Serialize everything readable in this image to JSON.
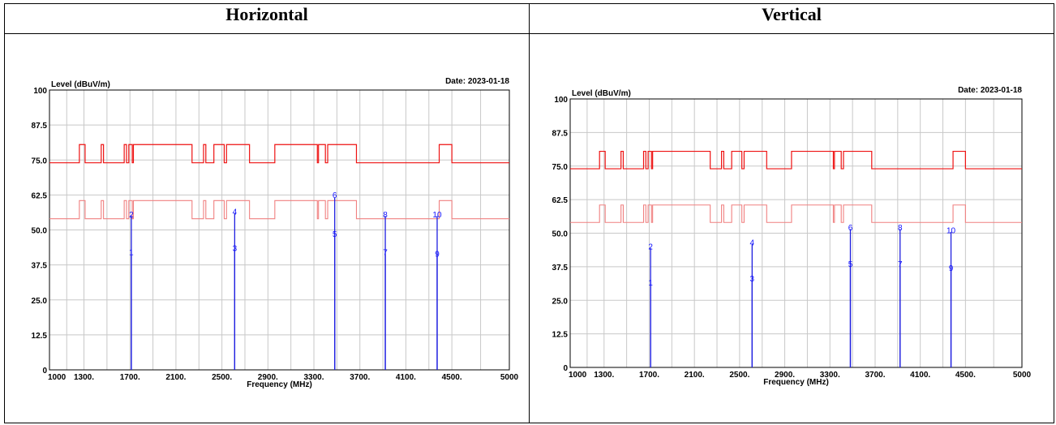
{
  "headers": {
    "left": "Horizontal",
    "right": "Vertical"
  },
  "chart_data": [
    {
      "type": "line",
      "panel": "Horizontal",
      "ylabel": "Level (dBuV/m)",
      "xlabel": "Frequency (MHz)",
      "date_text": "Date: 2023-01-18",
      "xlim": [
        1000,
        5000
      ],
      "ylim": [
        0,
        100
      ],
      "x_ticks": [
        1000,
        1300,
        1700,
        2100,
        2500,
        2900,
        3300,
        3700,
        4100,
        4500,
        5000
      ],
      "x_tick_labels": [
        "1000",
        "1300.",
        "1700.",
        "2100.",
        "2500.",
        "2900.",
        "3300.",
        "3700.",
        "4100.",
        "4500.",
        "5000"
      ],
      "y_ticks": [
        0,
        12.5,
        25,
        37.5,
        50,
        62.5,
        75,
        87.5,
        100
      ],
      "y_tick_labels": [
        "0",
        "12.5",
        "25.0",
        "37.5",
        "50.0",
        "62.5",
        "75.0",
        "87.5",
        "100"
      ],
      "limit_peak": [
        [
          1000,
          74
        ],
        [
          1260,
          74
        ],
        [
          1260,
          80.5
        ],
        [
          1310,
          80.5
        ],
        [
          1310,
          74
        ],
        [
          1450,
          74
        ],
        [
          1450,
          80.5
        ],
        [
          1470,
          80.5
        ],
        [
          1470,
          74
        ],
        [
          1650,
          74
        ],
        [
          1650,
          80.5
        ],
        [
          1670,
          80.5
        ],
        [
          1670,
          74
        ],
        [
          1690,
          74
        ],
        [
          1690,
          80.5
        ],
        [
          1720,
          80.5
        ],
        [
          1720,
          74
        ],
        [
          1730,
          74
        ],
        [
          1730,
          80.5
        ],
        [
          2240,
          80.5
        ],
        [
          2240,
          74
        ],
        [
          2340,
          74
        ],
        [
          2340,
          80.5
        ],
        [
          2360,
          80.5
        ],
        [
          2360,
          74
        ],
        [
          2430,
          74
        ],
        [
          2430,
          80.5
        ],
        [
          2520,
          80.5
        ],
        [
          2520,
          74
        ],
        [
          2540,
          74
        ],
        [
          2540,
          80.5
        ],
        [
          2740,
          80.5
        ],
        [
          2740,
          74
        ],
        [
          2960,
          74
        ],
        [
          2960,
          80.5
        ],
        [
          3330,
          80.5
        ],
        [
          3330,
          74
        ],
        [
          3340,
          74
        ],
        [
          3340,
          80.5
        ],
        [
          3400,
          80.5
        ],
        [
          3400,
          74
        ],
        [
          3420,
          74
        ],
        [
          3420,
          80.5
        ],
        [
          3670,
          80.5
        ],
        [
          3670,
          74
        ],
        [
          4390,
          74
        ],
        [
          4390,
          80.5
        ],
        [
          4500,
          80.5
        ],
        [
          4500,
          74
        ],
        [
          5000,
          74
        ]
      ],
      "limit_avg": [
        [
          1000,
          54
        ],
        [
          1260,
          54
        ],
        [
          1260,
          60.5
        ],
        [
          1310,
          60.5
        ],
        [
          1310,
          54
        ],
        [
          1450,
          54
        ],
        [
          1450,
          60.5
        ],
        [
          1470,
          60.5
        ],
        [
          1470,
          54
        ],
        [
          1650,
          54
        ],
        [
          1650,
          60.5
        ],
        [
          1670,
          60.5
        ],
        [
          1670,
          54
        ],
        [
          1690,
          54
        ],
        [
          1690,
          60.5
        ],
        [
          1720,
          60.5
        ],
        [
          1720,
          54
        ],
        [
          1730,
          54
        ],
        [
          1730,
          60.5
        ],
        [
          2240,
          60.5
        ],
        [
          2240,
          54
        ],
        [
          2340,
          54
        ],
        [
          2340,
          60.5
        ],
        [
          2360,
          60.5
        ],
        [
          2360,
          54
        ],
        [
          2430,
          54
        ],
        [
          2430,
          60.5
        ],
        [
          2520,
          60.5
        ],
        [
          2520,
          54
        ],
        [
          2540,
          54
        ],
        [
          2540,
          60.5
        ],
        [
          2740,
          60.5
        ],
        [
          2740,
          54
        ],
        [
          2960,
          54
        ],
        [
          2960,
          60.5
        ],
        [
          3330,
          60.5
        ],
        [
          3330,
          54
        ],
        [
          3340,
          54
        ],
        [
          3340,
          60.5
        ],
        [
          3400,
          60.5
        ],
        [
          3400,
          54
        ],
        [
          3420,
          54
        ],
        [
          3420,
          60.5
        ],
        [
          3670,
          60.5
        ],
        [
          3670,
          54
        ],
        [
          4390,
          54
        ],
        [
          4390,
          60.5
        ],
        [
          4500,
          60.5
        ],
        [
          4500,
          54
        ],
        [
          5000,
          54
        ]
      ],
      "peaks": [
        {
          "freq": 1712,
          "value": 55,
          "label": "2",
          "label_value": 54.5
        },
        {
          "freq": 1712,
          "value": 41,
          "label": "1",
          "label_value": 41
        },
        {
          "freq": 2611,
          "value": 56,
          "label": "4",
          "label_value": 55.5
        },
        {
          "freq": 2611,
          "value": 43,
          "label": "3",
          "label_value": 42.5
        },
        {
          "freq": 3481,
          "value": 61.5,
          "label": "6",
          "label_value": 61.5
        },
        {
          "freq": 3481,
          "value": 47.5,
          "label": "5",
          "label_value": 47.5
        },
        {
          "freq": 3921,
          "value": 55,
          "label": "8",
          "label_value": 54.5
        },
        {
          "freq": 3921,
          "value": 41,
          "label": "7",
          "label_value": 41
        },
        {
          "freq": 4372,
          "value": 55,
          "label": "10",
          "label_value": 54.5
        },
        {
          "freq": 4372,
          "value": 41,
          "label": "9",
          "label_value": 40.5
        }
      ]
    },
    {
      "type": "line",
      "panel": "Vertical",
      "ylabel": "Level (dBuV/m)",
      "xlabel": "Frequency (MHz)",
      "date_text": "Date: 2023-01-18",
      "xlim": [
        1000,
        5000
      ],
      "ylim": [
        0,
        100
      ],
      "x_ticks": [
        1000,
        1300,
        1700,
        2100,
        2500,
        2900,
        3300,
        3700,
        4100,
        4500,
        5000
      ],
      "x_tick_labels": [
        "1000",
        "1300.",
        "1700.",
        "2100.",
        "2500.",
        "2900.",
        "3300.",
        "3700.",
        "4100.",
        "4500.",
        "5000"
      ],
      "y_ticks": [
        0,
        12.5,
        25,
        37.5,
        50,
        62.5,
        75,
        87.5,
        100
      ],
      "y_tick_labels": [
        "0",
        "12.5",
        "25.0",
        "37.5",
        "50.0",
        "62.5",
        "75.0",
        "87.5",
        "100"
      ],
      "limit_peak": [
        [
          1000,
          74
        ],
        [
          1260,
          74
        ],
        [
          1260,
          80.5
        ],
        [
          1310,
          80.5
        ],
        [
          1310,
          74
        ],
        [
          1450,
          74
        ],
        [
          1450,
          80.5
        ],
        [
          1470,
          80.5
        ],
        [
          1470,
          74
        ],
        [
          1650,
          74
        ],
        [
          1650,
          80.5
        ],
        [
          1670,
          80.5
        ],
        [
          1670,
          74
        ],
        [
          1690,
          74
        ],
        [
          1690,
          80.5
        ],
        [
          1720,
          80.5
        ],
        [
          1720,
          74
        ],
        [
          1730,
          74
        ],
        [
          1730,
          80.5
        ],
        [
          2240,
          80.5
        ],
        [
          2240,
          74
        ],
        [
          2340,
          74
        ],
        [
          2340,
          80.5
        ],
        [
          2360,
          80.5
        ],
        [
          2360,
          74
        ],
        [
          2430,
          74
        ],
        [
          2430,
          80.5
        ],
        [
          2520,
          80.5
        ],
        [
          2520,
          74
        ],
        [
          2540,
          74
        ],
        [
          2540,
          80.5
        ],
        [
          2740,
          80.5
        ],
        [
          2740,
          74
        ],
        [
          2960,
          74
        ],
        [
          2960,
          80.5
        ],
        [
          3330,
          80.5
        ],
        [
          3330,
          74
        ],
        [
          3340,
          74
        ],
        [
          3340,
          80.5
        ],
        [
          3400,
          80.5
        ],
        [
          3400,
          74
        ],
        [
          3420,
          74
        ],
        [
          3420,
          80.5
        ],
        [
          3670,
          80.5
        ],
        [
          3670,
          74
        ],
        [
          4390,
          74
        ],
        [
          4390,
          80.5
        ],
        [
          4500,
          80.5
        ],
        [
          4500,
          74
        ],
        [
          5000,
          74
        ]
      ],
      "limit_avg": [
        [
          1000,
          54
        ],
        [
          1260,
          54
        ],
        [
          1260,
          60.5
        ],
        [
          1310,
          60.5
        ],
        [
          1310,
          54
        ],
        [
          1450,
          54
        ],
        [
          1450,
          60.5
        ],
        [
          1470,
          60.5
        ],
        [
          1470,
          54
        ],
        [
          1650,
          54
        ],
        [
          1650,
          60.5
        ],
        [
          1670,
          60.5
        ],
        [
          1670,
          54
        ],
        [
          1690,
          54
        ],
        [
          1690,
          60.5
        ],
        [
          1720,
          60.5
        ],
        [
          1720,
          54
        ],
        [
          1730,
          54
        ],
        [
          1730,
          60.5
        ],
        [
          2240,
          60.5
        ],
        [
          2240,
          54
        ],
        [
          2340,
          54
        ],
        [
          2340,
          60.5
        ],
        [
          2360,
          60.5
        ],
        [
          2360,
          54
        ],
        [
          2430,
          54
        ],
        [
          2430,
          60.5
        ],
        [
          2520,
          60.5
        ],
        [
          2520,
          54
        ],
        [
          2540,
          54
        ],
        [
          2540,
          60.5
        ],
        [
          2740,
          60.5
        ],
        [
          2740,
          54
        ],
        [
          2960,
          54
        ],
        [
          2960,
          60.5
        ],
        [
          3330,
          60.5
        ],
        [
          3330,
          54
        ],
        [
          3340,
          54
        ],
        [
          3340,
          60.5
        ],
        [
          3400,
          60.5
        ],
        [
          3400,
          54
        ],
        [
          3420,
          54
        ],
        [
          3420,
          60.5
        ],
        [
          3670,
          60.5
        ],
        [
          3670,
          54
        ],
        [
          4390,
          54
        ],
        [
          4390,
          60.5
        ],
        [
          4500,
          60.5
        ],
        [
          4500,
          54
        ],
        [
          5000,
          54
        ]
      ],
      "peaks": [
        {
          "freq": 1712,
          "value": 44.5,
          "label": "2",
          "label_value": 44
        },
        {
          "freq": 1712,
          "value": 31,
          "label": "1",
          "label_value": 30.5
        },
        {
          "freq": 2611,
          "value": 46,
          "label": "4",
          "label_value": 45.5
        },
        {
          "freq": 2611,
          "value": 32,
          "label": "3",
          "label_value": 32
        },
        {
          "freq": 3481,
          "value": 51.5,
          "label": "6",
          "label_value": 51
        },
        {
          "freq": 3481,
          "value": 37.5,
          "label": "5",
          "label_value": 37.5
        },
        {
          "freq": 3921,
          "value": 51.5,
          "label": "8",
          "label_value": 51
        },
        {
          "freq": 3921,
          "value": 37.5,
          "label": "7",
          "label_value": 37.5
        },
        {
          "freq": 4372,
          "value": 50.5,
          "label": "10",
          "label_value": 50
        },
        {
          "freq": 4372,
          "value": 36.5,
          "label": "9",
          "label_value": 36
        }
      ]
    }
  ]
}
